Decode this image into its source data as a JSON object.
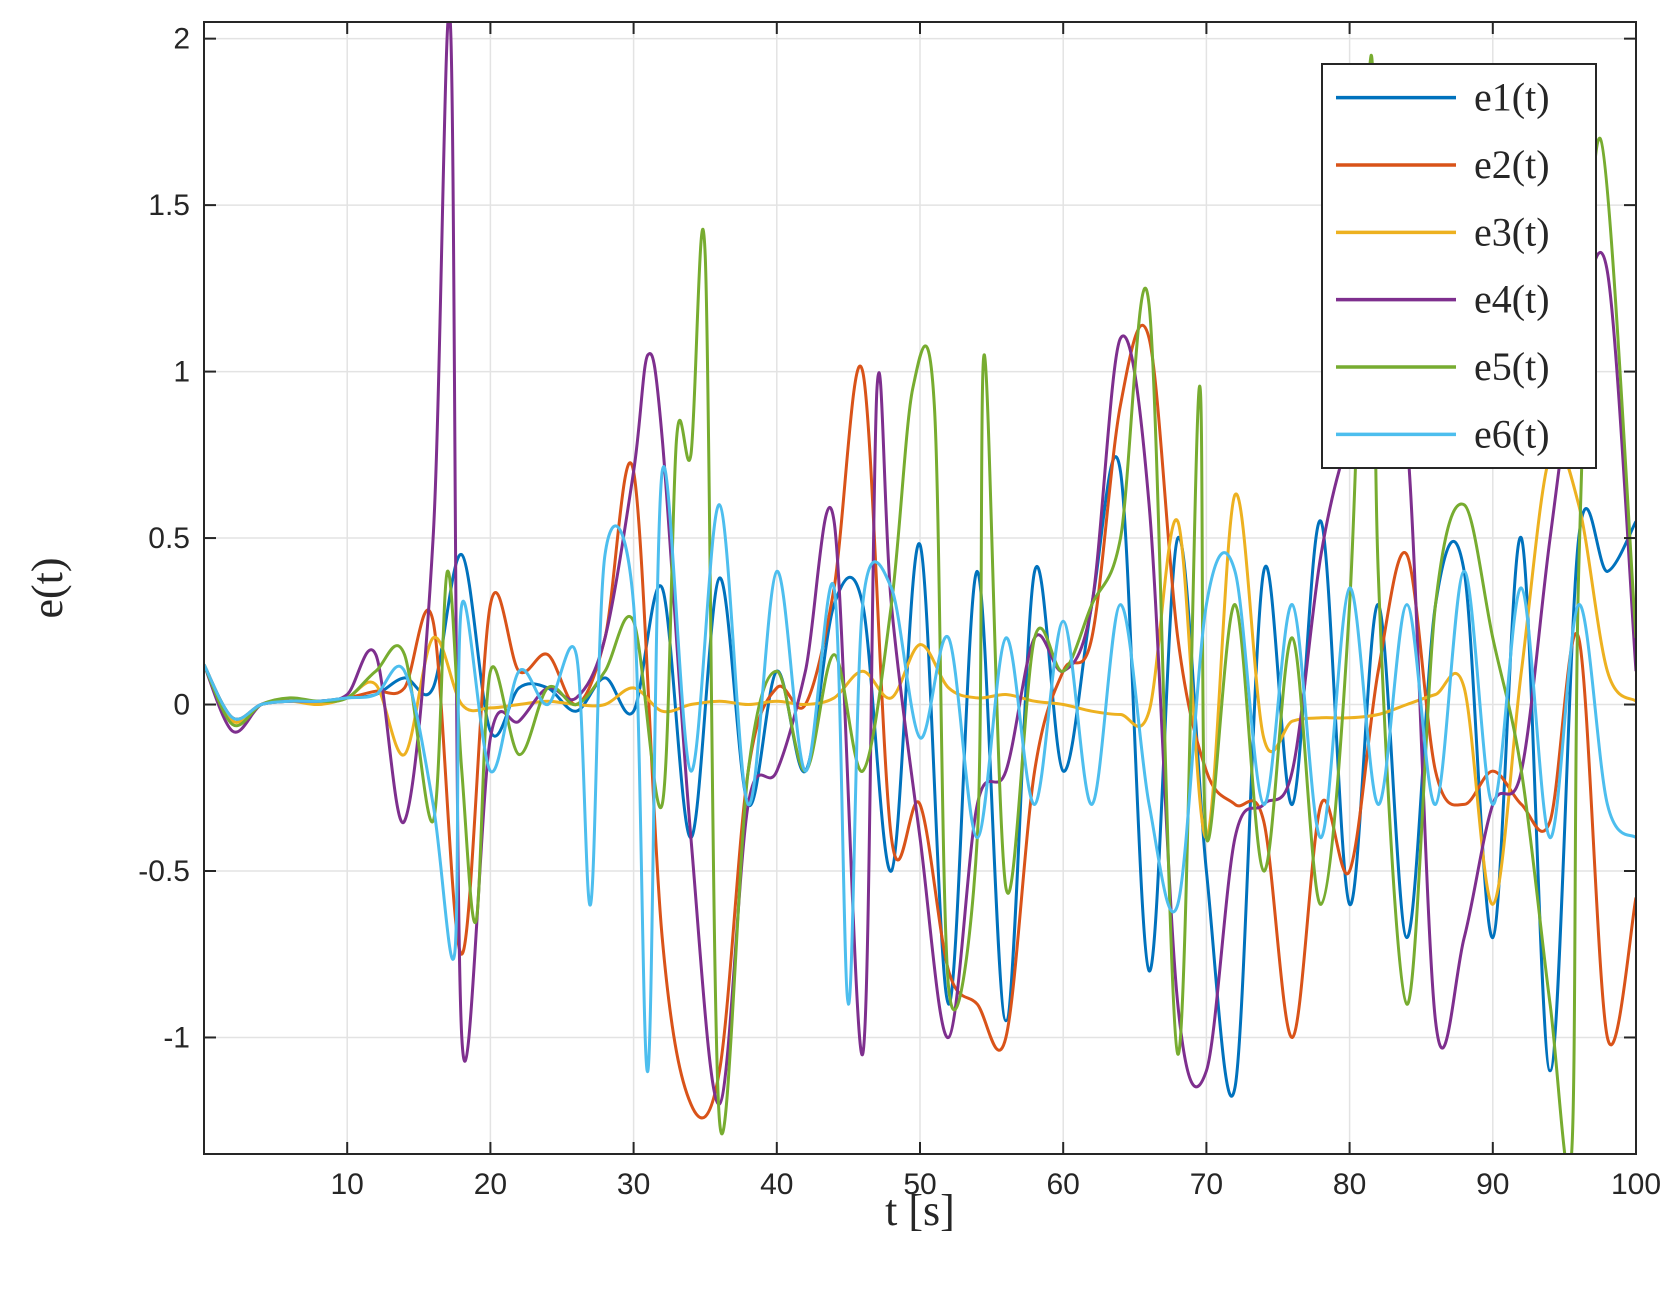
{
  "chart_data": {
    "type": "line",
    "title": "",
    "xlabel": "t [s]",
    "ylabel": "e(t)",
    "xlim": [
      0,
      100
    ],
    "ylim": [
      -1.35,
      2.05
    ],
    "grid": true,
    "legend_position": "top-right",
    "x_ticks": [
      10,
      20,
      30,
      40,
      50,
      60,
      70,
      80,
      90,
      100
    ],
    "x_tick_labels": [
      "10",
      "20",
      "30",
      "40",
      "50",
      "60",
      "70",
      "80",
      "90",
      "100"
    ],
    "y_ticks": [
      -1,
      -0.5,
      0,
      0.5,
      1,
      1.5,
      2
    ],
    "y_tick_labels": [
      "-1",
      "-0.5",
      "0",
      "0.5",
      "1",
      "1.5",
      "2"
    ],
    "series": [
      {
        "name": "e1(t)",
        "color": "#0072BD",
        "x": [
          0,
          2,
          4,
          6,
          8,
          10,
          12,
          14,
          16,
          18,
          20,
          22,
          24,
          26,
          28,
          30,
          32,
          34,
          36,
          38,
          40,
          42,
          44,
          46,
          48,
          50,
          52,
          54,
          56,
          58,
          60,
          62,
          64,
          66,
          68,
          70,
          72,
          74,
          76,
          78,
          80,
          82,
          84,
          86,
          88,
          90,
          92,
          94,
          96,
          98,
          100
        ],
        "y": [
          0.12,
          -0.04,
          0,
          0.01,
          0.01,
          0.02,
          0.03,
          0.08,
          0.05,
          0.45,
          -0.08,
          0.05,
          0.05,
          -0.02,
          0.08,
          -0.02,
          0.35,
          -0.4,
          0.38,
          -0.3,
          0.1,
          -0.2,
          0.3,
          0.3,
          -0.5,
          0.48,
          -0.9,
          0.4,
          -0.95,
          0.4,
          -0.2,
          0.3,
          0.7,
          -0.8,
          0.5,
          -0.5,
          -1.15,
          0.4,
          -0.3,
          0.55,
          -0.6,
          0.3,
          -0.7,
          0.3,
          0.4,
          -0.7,
          0.5,
          -1.1,
          0.5,
          0.4,
          0.55
        ]
      },
      {
        "name": "e2(t)",
        "color": "#D95319",
        "x": [
          0,
          2,
          4,
          6,
          8,
          10,
          12,
          14,
          16,
          18,
          20,
          22,
          24,
          26,
          28,
          30,
          32,
          34,
          36,
          38,
          40,
          42,
          44,
          46,
          48,
          50,
          52,
          54,
          56,
          58,
          60,
          62,
          64,
          66,
          68,
          70,
          72,
          74,
          76,
          78,
          80,
          82,
          84,
          86,
          88,
          90,
          92,
          94,
          96,
          98,
          100
        ],
        "y": [
          0.12,
          -0.04,
          0,
          0.01,
          0.01,
          0.02,
          0.04,
          0.05,
          0.25,
          -0.75,
          0.3,
          0.1,
          0.15,
          0,
          0.2,
          0.7,
          -0.7,
          -1.2,
          -1.1,
          -0.2,
          0.05,
          0,
          0.35,
          1.0,
          -0.4,
          -0.3,
          -0.8,
          -0.9,
          -1.0,
          -0.2,
          0.1,
          0.2,
          0.9,
          1.1,
          0.2,
          -0.2,
          -0.3,
          -0.35,
          -1.0,
          -0.3,
          -0.5,
          0.1,
          0.45,
          -0.2,
          -0.3,
          -0.2,
          -0.3,
          -0.35,
          0.2,
          -1.0,
          -0.58
        ]
      },
      {
        "name": "e3(t)",
        "color": "#EDB120",
        "x": [
          0,
          2,
          4,
          6,
          8,
          10,
          12,
          14,
          16,
          18,
          20,
          22,
          24,
          26,
          28,
          30,
          32,
          34,
          36,
          38,
          40,
          42,
          44,
          46,
          48,
          50,
          52,
          54,
          56,
          58,
          60,
          62,
          64,
          66,
          68,
          70,
          72,
          74,
          76,
          78,
          80,
          82,
          84,
          86,
          88,
          90,
          92,
          94,
          96,
          98,
          100
        ],
        "y": [
          0.12,
          -0.05,
          0,
          0.01,
          0,
          0.02,
          0.06,
          -0.15,
          0.2,
          0,
          -0.01,
          0,
          0.01,
          0,
          0,
          0.05,
          -0.02,
          0,
          0.01,
          0,
          0.01,
          0,
          0.02,
          0.1,
          0.02,
          0.18,
          0.05,
          0.02,
          0.03,
          0.01,
          0,
          -0.02,
          -0.03,
          -0.02,
          0.55,
          -0.4,
          0.63,
          -0.1,
          -0.05,
          -0.04,
          -0.04,
          -0.03,
          0,
          0.03,
          0.05,
          -0.6,
          0.1,
          0.75,
          0.6,
          0.1,
          0.01
        ]
      },
      {
        "name": "e4(t)",
        "color": "#7E2F8E",
        "x": [
          0,
          2,
          4,
          6,
          8,
          10,
          12,
          14,
          16,
          17.2,
          18,
          20,
          22,
          24,
          26,
          28,
          30,
          31,
          32,
          34,
          36,
          38,
          40,
          42,
          44,
          46,
          47,
          48,
          50,
          52,
          54,
          56,
          58,
          60,
          62,
          64,
          66,
          68,
          70,
          72,
          74,
          76,
          78,
          80,
          82,
          84,
          86,
          88,
          90,
          92,
          94,
          96,
          98,
          100
        ],
        "y": [
          0.12,
          -0.08,
          0,
          0.01,
          0.01,
          0.03,
          0.15,
          -0.35,
          0.5,
          2.05,
          -1.0,
          -0.1,
          -0.05,
          0.05,
          0.02,
          0.2,
          0.7,
          1.05,
          0.8,
          -0.4,
          -1.2,
          -0.3,
          -0.2,
          0.1,
          0.55,
          -1.05,
          0.95,
          0.3,
          -0.4,
          -1.0,
          -0.3,
          -0.2,
          0.2,
          0.1,
          0.3,
          1.1,
          0.6,
          -0.9,
          -1.1,
          -0.4,
          -0.3,
          -0.2,
          0.45,
          0.8,
          0.9,
          0.8,
          -0.95,
          -0.7,
          -0.3,
          -0.2,
          0.5,
          1.1,
          1.3,
          0.1
        ]
      },
      {
        "name": "e5(t)",
        "color": "#77AC30",
        "x": [
          0,
          2,
          4,
          6,
          8,
          10,
          12,
          14,
          16,
          17,
          18,
          19,
          20,
          22,
          24,
          26,
          28,
          30,
          32,
          33,
          34,
          35,
          36,
          38,
          40,
          42,
          44,
          46,
          48,
          49.5,
          51,
          52,
          54,
          54.5,
          56,
          58,
          60,
          62,
          64,
          66,
          68,
          69.5,
          70,
          72,
          74,
          76,
          78,
          80,
          81.5,
          82,
          84,
          86,
          88,
          90,
          92,
          94,
          95.5,
          96,
          97.5,
          100
        ],
        "y": [
          0.12,
          -0.06,
          0,
          0.02,
          0.01,
          0.02,
          0.1,
          0.15,
          -0.35,
          0.4,
          -0.2,
          -0.65,
          0.1,
          -0.15,
          0.05,
          0,
          0.1,
          0.25,
          -0.3,
          0.8,
          0.75,
          1.35,
          -1.25,
          -0.2,
          0.1,
          -0.2,
          0.15,
          -0.2,
          0.3,
          0.95,
          0.9,
          -0.85,
          -0.4,
          1.05,
          -0.55,
          0.2,
          0.1,
          0.3,
          0.5,
          1.2,
          -1.05,
          0.95,
          -0.4,
          0.3,
          -0.5,
          0.2,
          -0.6,
          0.3,
          1.95,
          0.4,
          -0.9,
          0.3,
          0.6,
          0.2,
          -0.2,
          -0.9,
          -1.35,
          0.4,
          1.7,
          0.2
        ]
      },
      {
        "name": "e6(t)",
        "color": "#4DBEEE",
        "x": [
          0,
          2,
          4,
          6,
          8,
          10,
          12,
          14,
          16,
          17.5,
          18,
          20,
          22,
          24,
          26,
          27,
          28,
          30,
          31,
          32,
          34,
          36,
          38,
          40,
          42,
          44,
          45,
          46,
          48,
          50,
          52,
          54,
          56,
          58,
          60,
          62,
          64,
          66,
          68,
          70,
          72,
          74,
          76,
          78,
          80,
          82,
          84,
          86,
          88,
          90,
          92,
          94,
          96,
          98,
          100
        ],
        "y": [
          0.12,
          -0.04,
          0,
          0.01,
          0.01,
          0.02,
          0.03,
          0.1,
          -0.3,
          -0.75,
          0.3,
          -0.2,
          0.1,
          0,
          0.15,
          -0.6,
          0.45,
          0.3,
          -1.1,
          0.7,
          -0.2,
          0.6,
          -0.3,
          0.4,
          -0.2,
          0.35,
          -0.9,
          0.3,
          0.35,
          -0.1,
          0.2,
          -0.4,
          0.2,
          -0.3,
          0.25,
          -0.3,
          0.3,
          -0.3,
          -0.6,
          0.3,
          0.4,
          -0.3,
          0.3,
          -0.4,
          0.35,
          -0.3,
          0.3,
          -0.3,
          0.4,
          -0.3,
          0.35,
          -0.4,
          0.3,
          -0.3,
          -0.4
        ]
      }
    ]
  }
}
